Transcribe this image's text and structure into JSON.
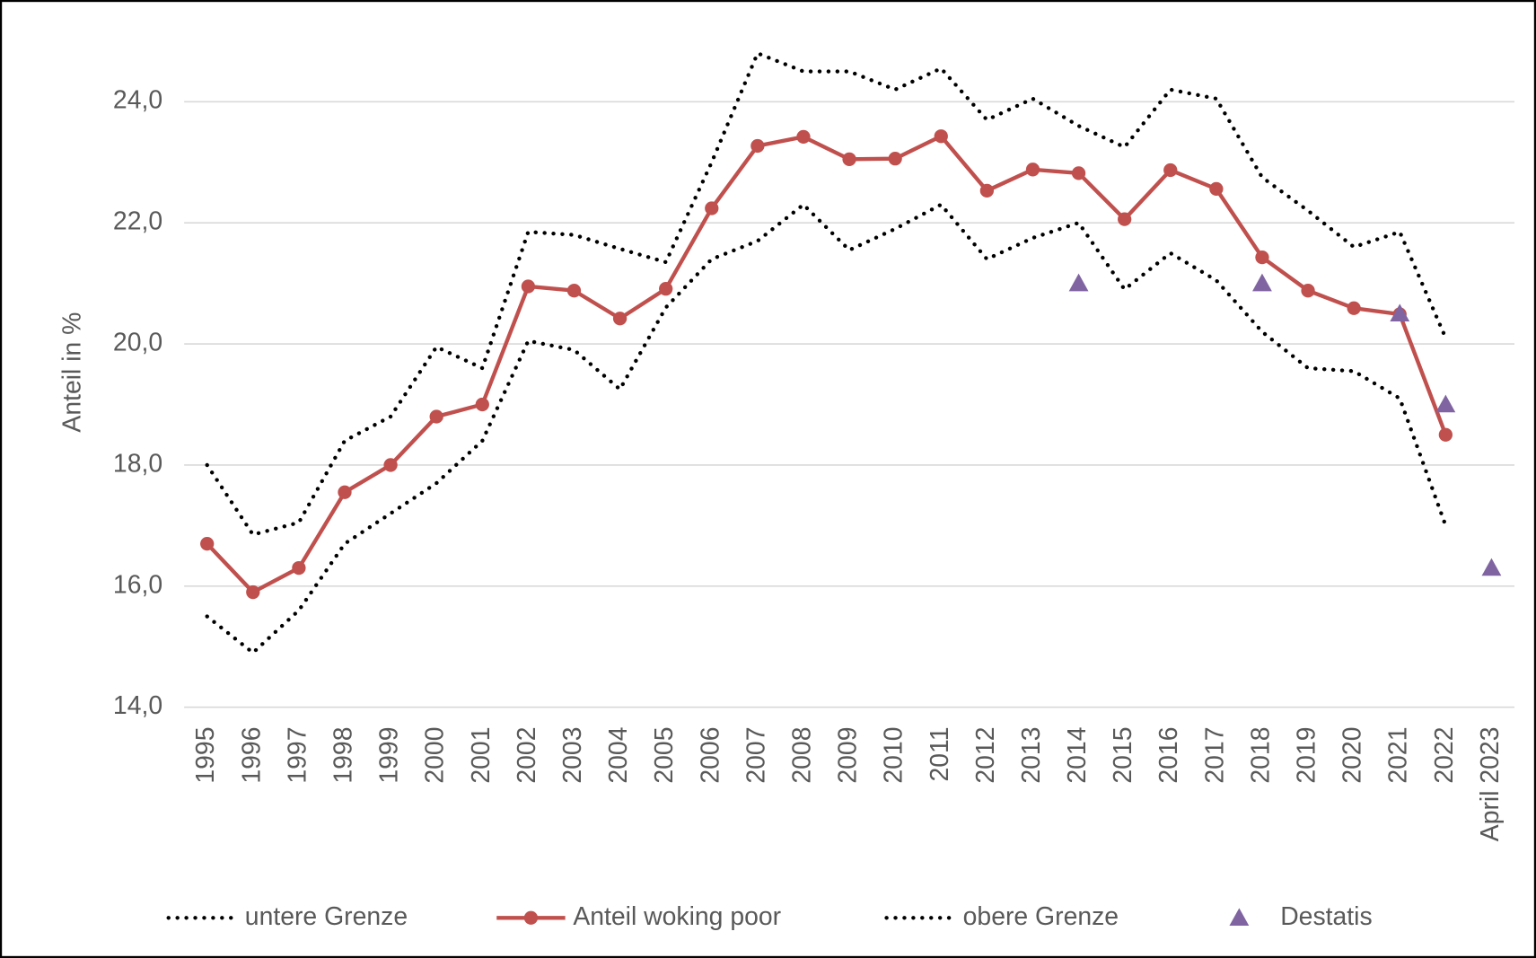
{
  "chart_data": {
    "type": "line",
    "y_label": "Anteil in %",
    "categories": [
      "1995",
      "1996",
      "1997",
      "1998",
      "1999",
      "2000",
      "2001",
      "2002",
      "2003",
      "2004",
      "2005",
      "2006",
      "2007",
      "2008",
      "2009",
      "2010",
      "2011",
      "2012",
      "2013",
      "2014",
      "2015",
      "2016",
      "2017",
      "2018",
      "2019",
      "2020",
      "2021",
      "2022",
      "April 2023"
    ],
    "series": [
      {
        "name": "untere Grenze",
        "color": "#000000",
        "line": "dotted",
        "marker": "none",
        "values": [
          15.5,
          14.9,
          15.6,
          16.7,
          17.2,
          17.7,
          18.4,
          20.05,
          19.9,
          19.25,
          20.6,
          21.4,
          21.7,
          22.3,
          21.55,
          21.9,
          22.3,
          21.4,
          21.75,
          22.0,
          20.9,
          21.5,
          21.05,
          20.2,
          19.6,
          19.55,
          19.1,
          17.0,
          null
        ]
      },
      {
        "name": "Anteil woking poor",
        "color": "#c0504d",
        "line": "solid",
        "marker": "circle",
        "values": [
          16.7,
          15.9,
          16.3,
          17.55,
          18.0,
          18.8,
          19.0,
          20.95,
          20.88,
          20.42,
          20.91,
          22.24,
          23.27,
          23.42,
          23.05,
          23.06,
          23.43,
          22.53,
          22.88,
          22.82,
          22.06,
          22.87,
          22.56,
          21.43,
          20.88,
          20.59,
          20.49,
          18.5,
          null
        ]
      },
      {
        "name": "obere Grenze",
        "color": "#000000",
        "line": "dotted",
        "marker": "none",
        "values": [
          18.0,
          16.85,
          17.05,
          18.4,
          18.8,
          19.95,
          19.6,
          21.85,
          21.8,
          21.57,
          21.35,
          23.0,
          24.8,
          24.5,
          24.5,
          24.2,
          24.55,
          23.7,
          24.05,
          23.6,
          23.25,
          24.2,
          24.05,
          22.75,
          22.2,
          21.6,
          21.85,
          20.1,
          null
        ]
      },
      {
        "name": "Destatis",
        "color": "#8064a2",
        "line": "none",
        "marker": "triangle",
        "values": [
          null,
          null,
          null,
          null,
          null,
          null,
          null,
          null,
          null,
          null,
          null,
          null,
          null,
          null,
          null,
          null,
          null,
          null,
          null,
          21.0,
          null,
          null,
          null,
          21.0,
          null,
          null,
          20.5,
          19.0,
          16.3
        ]
      }
    ],
    "ylim": [
      14,
      25
    ],
    "yticks": [
      {
        "value": 14,
        "label": "14,0"
      },
      {
        "value": 16,
        "label": "16,0"
      },
      {
        "value": 18,
        "label": "18,0"
      },
      {
        "value": 20,
        "label": "20,0"
      },
      {
        "value": 22,
        "label": "22,0"
      },
      {
        "value": 24,
        "label": "24,0"
      }
    ],
    "grid": true,
    "legend": "bottom"
  }
}
